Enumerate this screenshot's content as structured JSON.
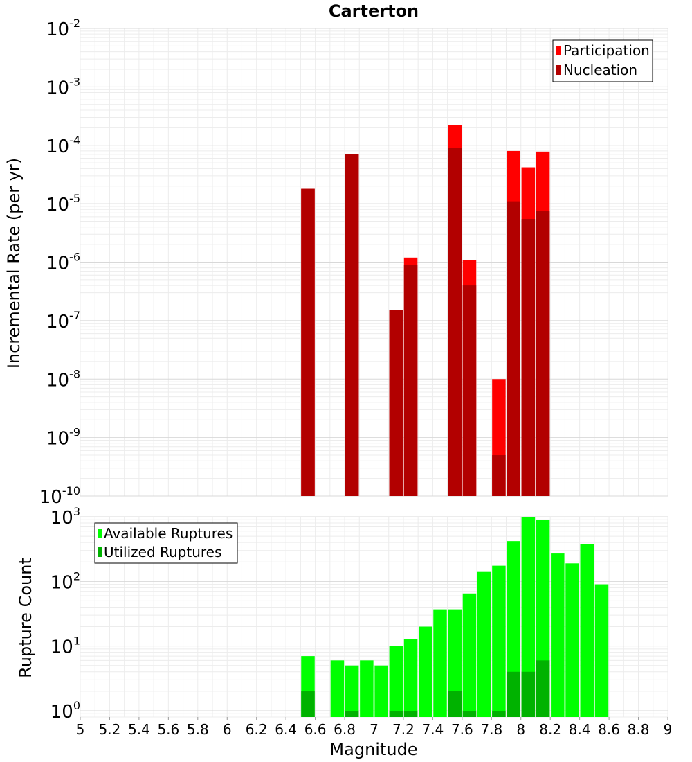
{
  "chart_data": [
    {
      "type": "bar",
      "title": "Carterton",
      "ylabel": "Incremental Rate (per yr)",
      "yscale": "log",
      "ylim": [
        1e-10,
        0.01
      ],
      "xlim": [
        5,
        9
      ],
      "y_tick_exponents": [
        "-10",
        "-9",
        "-8",
        "-7",
        "-6",
        "-5",
        "-4",
        "-3",
        "-2"
      ],
      "y_tick_base": "10",
      "grid": true,
      "legend_position": "top-right",
      "legend": [
        "Participation",
        "Nucleation"
      ],
      "colors": {
        "Participation": "#ff0000",
        "Nucleation": "#b20000"
      },
      "x": [
        6.55,
        6.85,
        7.15,
        7.25,
        7.55,
        7.65,
        7.85,
        7.95,
        8.05,
        8.15
      ],
      "series": [
        {
          "name": "Participation",
          "values": [
            1.8e-05,
            7e-05,
            1.5e-07,
            1.2e-06,
            0.00022,
            1.1e-06,
            1e-08,
            8e-05,
            4.2e-05,
            7.8e-05
          ]
        },
        {
          "name": "Nucleation",
          "values": [
            1.8e-05,
            7e-05,
            1.5e-07,
            9e-07,
            9e-05,
            4e-07,
            5e-10,
            1.1e-05,
            5.5e-06,
            7.5e-06
          ]
        }
      ]
    },
    {
      "type": "bar",
      "xlabel": "Magnitude",
      "ylabel": "Rupture Count",
      "yscale": "log",
      "ylim": [
        0.8,
        1000
      ],
      "xlim": [
        5,
        9
      ],
      "x_ticks": [
        "5",
        "5.2",
        "5.4",
        "5.6",
        "5.8",
        "6",
        "6.2",
        "6.4",
        "6.6",
        "6.8",
        "7",
        "7.2",
        "7.4",
        "7.6",
        "7.8",
        "8",
        "8.2",
        "8.4",
        "8.6",
        "8.8",
        "9"
      ],
      "y_tick_exponents": [
        "0",
        "1",
        "2",
        "3"
      ],
      "y_tick_base": "10",
      "grid": true,
      "legend_position": "top-left",
      "legend": [
        "Available Ruptures",
        "Utilized Ruptures"
      ],
      "colors": {
        "Available Ruptures": "#00ff00",
        "Utilized Ruptures": "#00b200"
      },
      "x": [
        6.55,
        6.75,
        6.85,
        6.95,
        7.05,
        7.15,
        7.25,
        7.35,
        7.45,
        7.55,
        7.65,
        7.75,
        7.85,
        7.95,
        8.05,
        8.15,
        8.25,
        8.35,
        8.45,
        8.55
      ],
      "series": [
        {
          "name": "Available Ruptures",
          "values": [
            7,
            6,
            5,
            6,
            5,
            10,
            13,
            20,
            37,
            37,
            65,
            140,
            175,
            420,
            1000,
            900,
            270,
            190,
            380,
            90
          ]
        },
        {
          "name": "Utilized Ruptures",
          "values": [
            2,
            0,
            1,
            0,
            0,
            1,
            1,
            0,
            0,
            2,
            1,
            0,
            1,
            4,
            4,
            6,
            0,
            0,
            0,
            0
          ]
        }
      ]
    }
  ]
}
